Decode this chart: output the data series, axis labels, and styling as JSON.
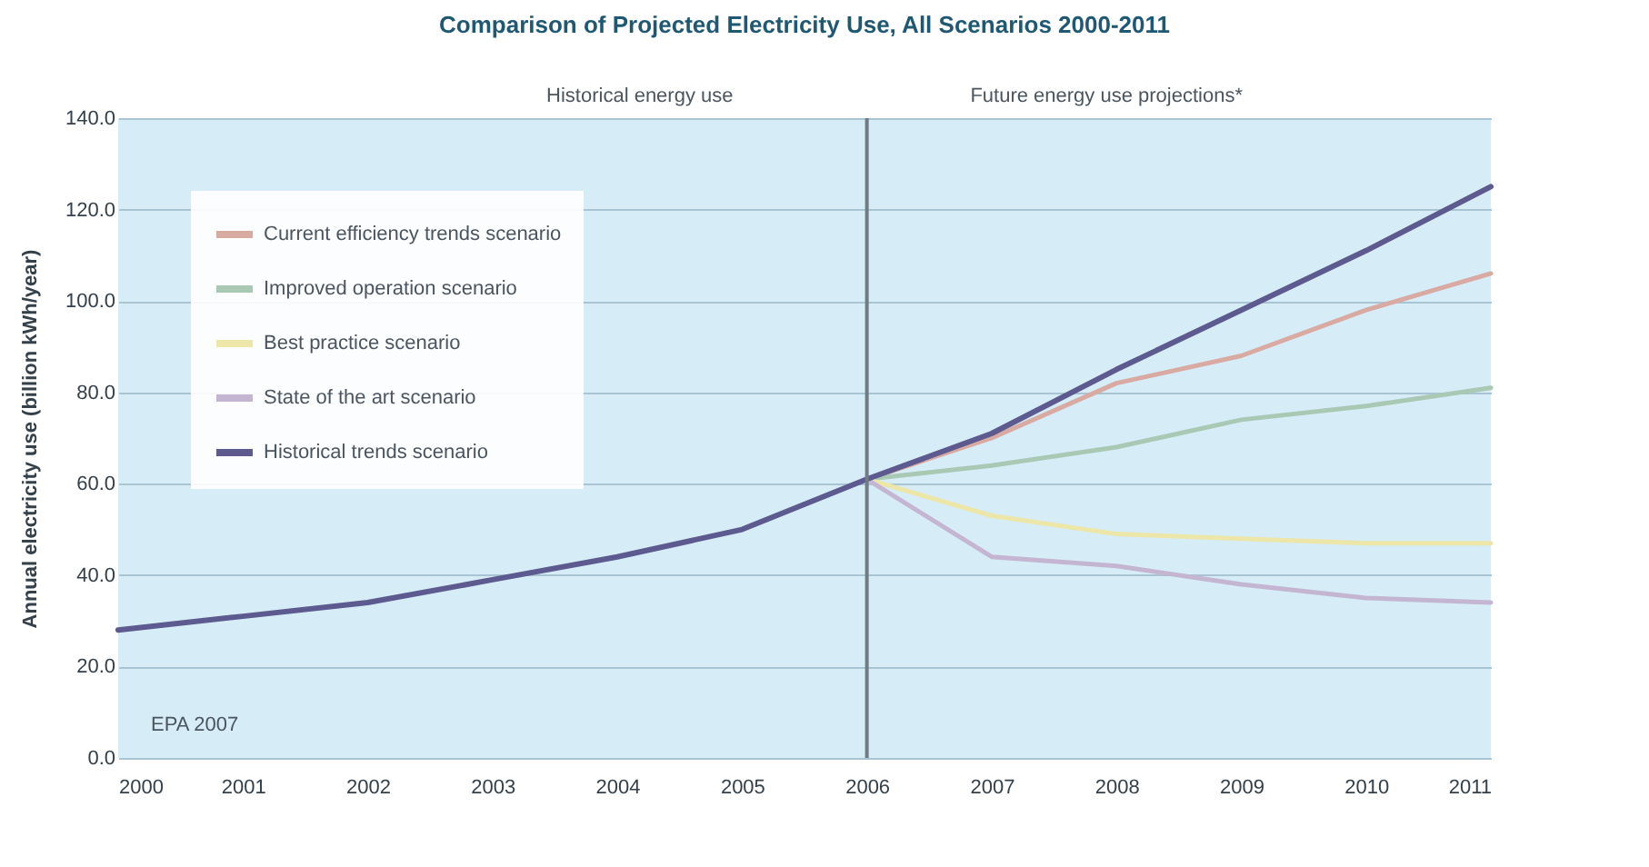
{
  "chart_data": {
    "type": "line",
    "title": "Comparison of Projected Electricity Use, All Scenarios 2000-2011",
    "ylabel": "Annual electricity use (billion kWh/year)",
    "x": [
      2006,
      2007,
      2008,
      2009,
      2010,
      2011
    ],
    "series": [
      {
        "name": "Current efficiency trends scenario",
        "color": "#d9aaa2",
        "values": [
          61,
          70,
          82,
          88,
          98,
          106
        ]
      },
      {
        "name": "Improved operation scenario",
        "color": "#a9c9b4",
        "values": [
          61,
          64,
          68,
          74,
          77,
          81
        ]
      },
      {
        "name": "Best practice scenario",
        "color": "#ece7a8",
        "values": [
          61,
          53,
          49,
          48,
          47,
          47
        ]
      },
      {
        "name": "State of the art scenario",
        "color": "#c4b6d2",
        "values": [
          61,
          44,
          42,
          38,
          35,
          34
        ]
      },
      {
        "name": "Historical trends scenario",
        "color": "#5c5a8e",
        "x": [
          2000,
          2001,
          2002,
          2003,
          2004,
          2005,
          2006,
          2007,
          2008,
          2009,
          2010,
          2011
        ],
        "values": [
          28,
          31,
          34,
          39,
          44,
          50,
          61,
          71,
          85,
          98,
          111,
          125
        ]
      }
    ],
    "xlim": [
      2000,
      2011
    ],
    "xticks": [
      2000,
      2001,
      2002,
      2003,
      2004,
      2005,
      2006,
      2007,
      2008,
      2009,
      2010,
      2011
    ],
    "ylim": [
      0,
      140
    ],
    "yticks": [
      {
        "value": 0,
        "label": "0.0"
      },
      {
        "value": 20,
        "label": "20.0"
      },
      {
        "value": 40,
        "label": "40.0"
      },
      {
        "value": 60,
        "label": "60.0"
      },
      {
        "value": 80,
        "label": "80.0"
      },
      {
        "value": 100,
        "label": "100.0"
      },
      {
        "value": 120,
        "label": "120.0"
      },
      {
        "value": 140,
        "label": "140.0"
      }
    ],
    "grid": "y",
    "legend": "top left",
    "ref_lines": [
      {
        "axis": "x",
        "value": 2006,
        "color": "#707c84"
      }
    ],
    "annotations": [
      "Historical energy use",
      "Future energy use projections*",
      "EPA 2007"
    ]
  }
}
